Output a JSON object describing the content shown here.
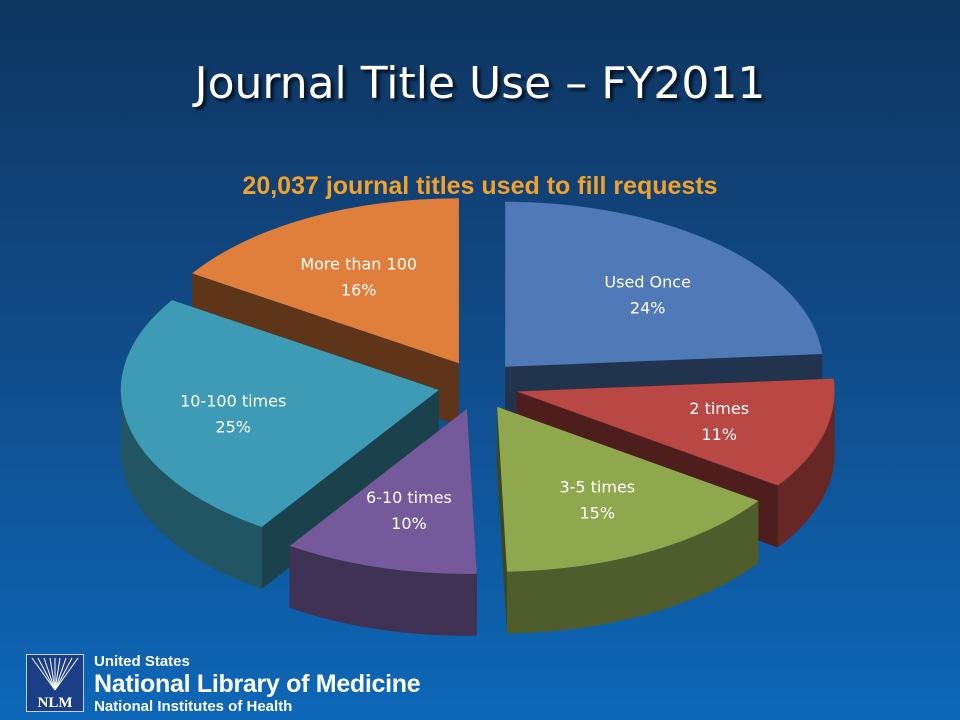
{
  "slide": {
    "title": "Journal Title Use – FY2011",
    "subtitle": "20,037 journal titles used to fill requests"
  },
  "chart_data": {
    "type": "pie",
    "title": "",
    "slices": [
      {
        "label": "Used Once",
        "percent_label": "24%",
        "value": 24,
        "color": "#4f79b7"
      },
      {
        "label": "2 times",
        "percent_label": "11%",
        "value": 11,
        "color": "#b94744"
      },
      {
        "label": "3-5 times",
        "percent_label": "15%",
        "value": 15,
        "color": "#8fa84e"
      },
      {
        "label": "6-10 times",
        "percent_label": "10%",
        "value": 10,
        "color": "#745a9a"
      },
      {
        "label": "10-100 times",
        "percent_label": "25%",
        "value": 25,
        "color": "#3e9bb5"
      },
      {
        "label": "More than 100",
        "percent_label": "16%",
        "value": 16,
        "color": "#e07f3c"
      }
    ],
    "exploded": true,
    "three_d": true,
    "legend": "none"
  },
  "footer": {
    "logo_text": "NLM",
    "line1": "United States",
    "line2": "National Library of Medicine",
    "line3": "National Institutes of Health"
  }
}
